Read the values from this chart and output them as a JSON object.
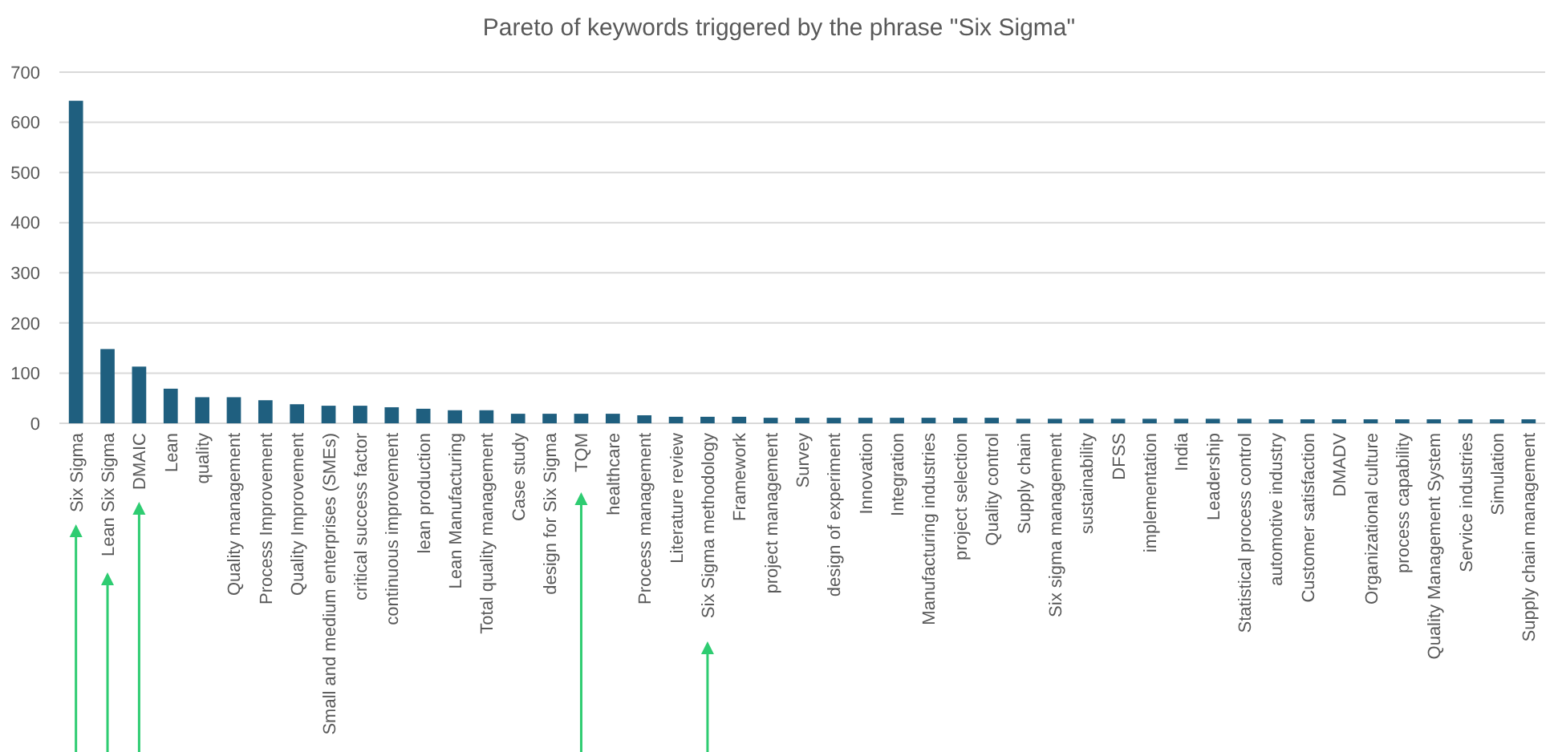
{
  "chart_data": {
    "type": "bar",
    "title": "Pareto of keywords triggered by the phrase \"Six Sigma\"",
    "categories": [
      "Six Sigma",
      "Lean Six Sigma",
      "DMAIC",
      "Lean",
      "quality",
      "Quality management",
      "Process Improvement",
      "Quality Improvement",
      "Small and medium enterprises (SMEs)",
      "critical success factor",
      "continuous improvement",
      "lean production",
      "Lean Manufacturing",
      "Total quality management",
      "Case study",
      "design for Six Sigma",
      "TQM",
      "healthcare",
      "Process management",
      "Literature review",
      "Six Sigma methodology",
      "Framework",
      "project management",
      "Survey",
      "design of experiment",
      "Innovation",
      "Integration",
      "Manufacturing industries",
      "project selection",
      "Quality control",
      "Supply chain",
      "Six sigma management",
      "sustainability",
      "DFSS",
      "implementation",
      "India",
      "Leadership",
      "Statistical process control",
      "automotive industry",
      "Customer satisfaction",
      "DMADV",
      "Organizational culture",
      "process capability",
      "Quality Management System",
      "Service industries",
      "Simulation",
      "Supply chain management"
    ],
    "values": [
      643,
      148,
      113,
      69,
      52,
      52,
      46,
      38,
      35,
      35,
      32,
      29,
      26,
      26,
      19,
      19,
      19,
      19,
      16,
      13,
      13,
      13,
      11,
      11,
      11,
      11,
      11,
      11,
      11,
      11,
      9,
      9,
      9,
      9,
      9,
      9,
      9,
      9,
      8,
      8,
      8,
      8,
      8,
      8,
      8,
      8,
      8
    ],
    "color": "#1f5f7f",
    "ylim": [
      0,
      700
    ],
    "yticks": [
      0,
      100,
      200,
      300,
      400,
      500,
      600,
      700
    ],
    "grid": "y"
  }
}
